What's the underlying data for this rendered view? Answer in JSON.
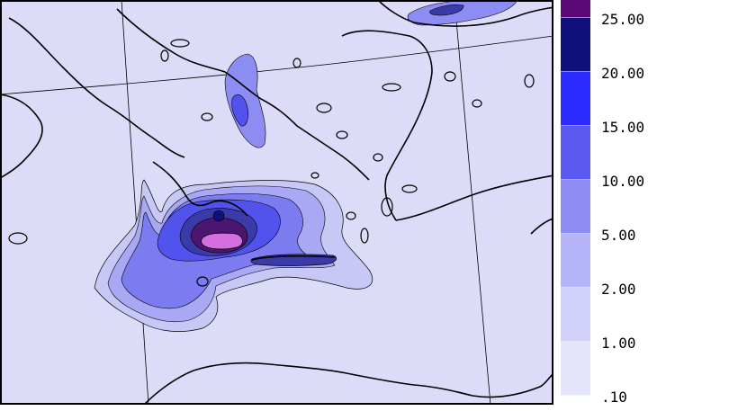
{
  "legend": {
    "levels": [
      {
        "label": "25.00",
        "color": "#5a0a78"
      },
      {
        "label": "20.00",
        "color": "#10107a"
      },
      {
        "label": "15.00",
        "color": "#2a2aff"
      },
      {
        "label": "10.00",
        "color": "#5a5af0"
      },
      {
        "label": "5.00",
        "color": "#8c8cf2"
      },
      {
        "label": "2.00",
        "color": "#b4b4f6"
      },
      {
        "label": "1.00",
        "color": "#d0d0f8"
      },
      {
        "label": ".10",
        "color": "#e4e4fa"
      }
    ],
    "background_color": "#dcdcf8"
  },
  "map": {
    "background_color": "#dcdcf8",
    "coastline_color": "#000000",
    "grid_color": "#000000"
  }
}
